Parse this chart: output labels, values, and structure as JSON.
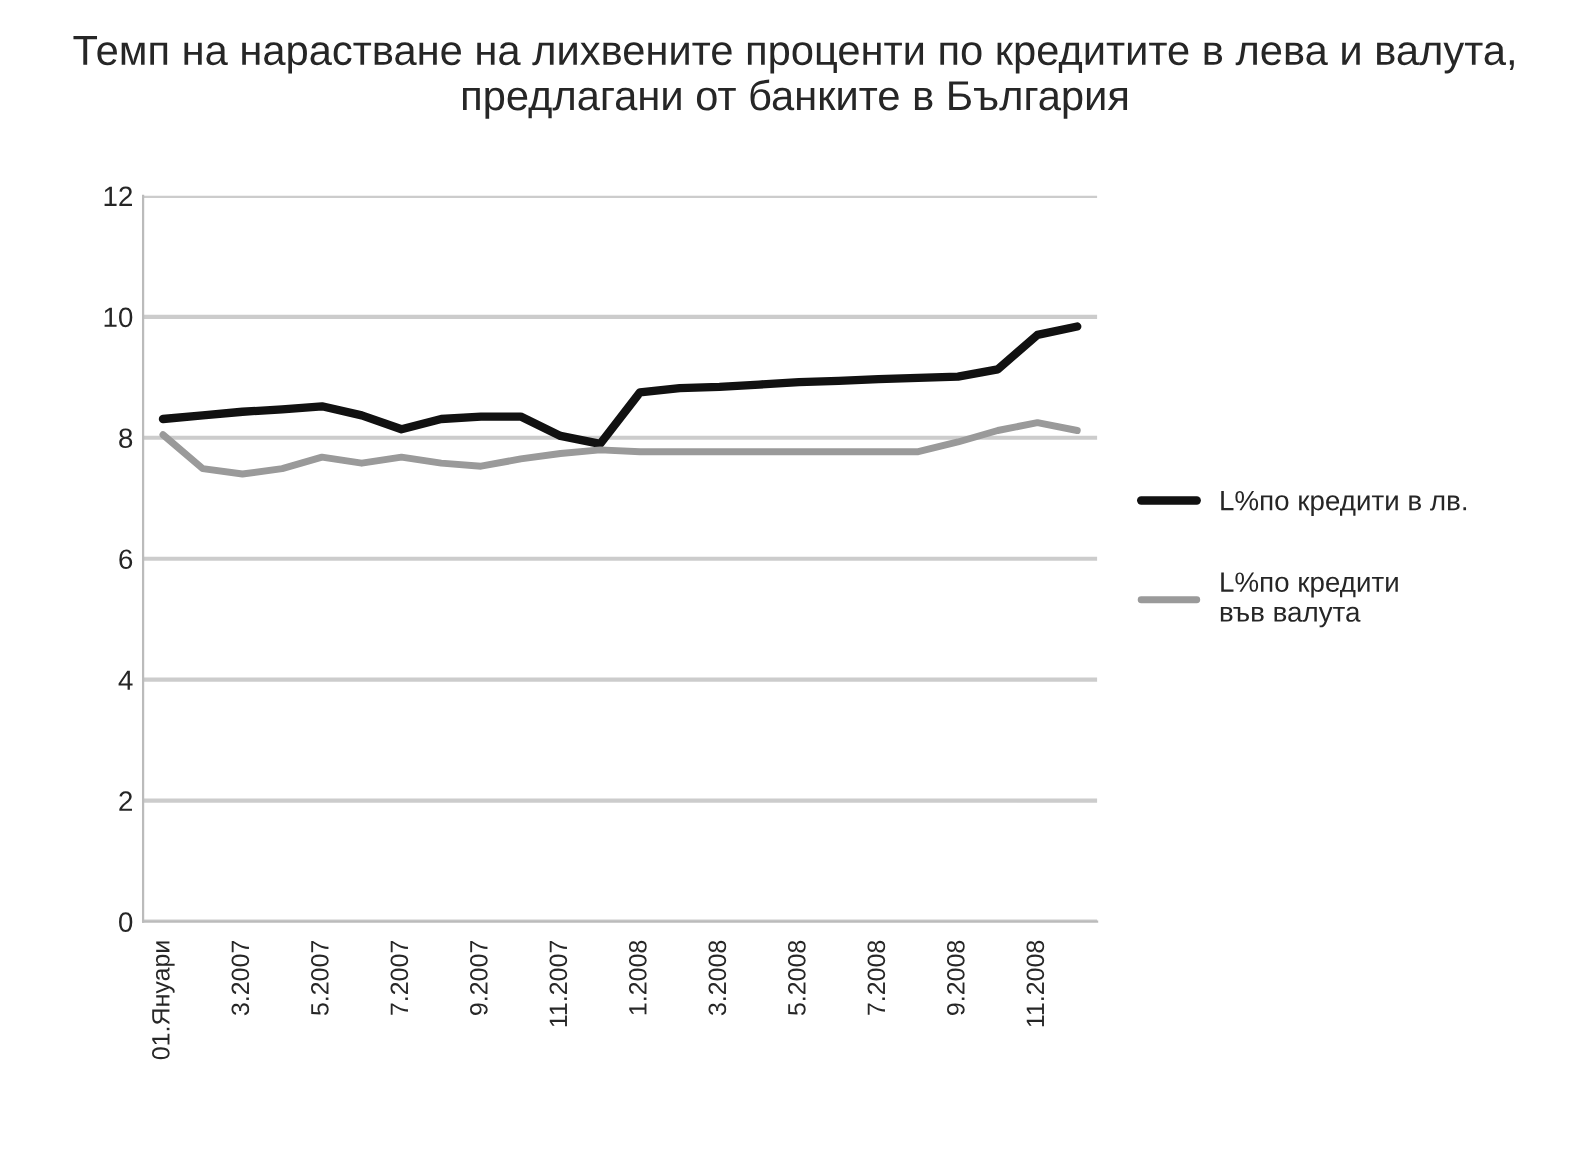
{
  "chart_data": {
    "type": "line",
    "title": "Темп на нарастване на лихвените проценти по кредитите в лева и валута, предлагани от банките в България",
    "categories": [
      "01.Януари",
      null,
      "3.2007",
      null,
      "5.2007",
      null,
      "7.2007",
      null,
      "9.2007",
      null,
      "11.2007",
      null,
      "1.2008",
      null,
      "3.2008",
      null,
      "5.2008",
      null,
      "7.2008",
      null,
      "9.2008",
      null,
      "11.2008",
      null
    ],
    "series": [
      {
        "name": "L%по кредити в лв.",
        "color": "#111111",
        "values": [
          8.31,
          8.37,
          8.43,
          8.47,
          8.52,
          8.37,
          8.14,
          8.31,
          8.35,
          8.35,
          8.03,
          7.9,
          8.75,
          8.82,
          8.84,
          8.88,
          8.92,
          8.94,
          8.97,
          8.99,
          9.01,
          9.13,
          9.7,
          9.84
        ]
      },
      {
        "name": "L%по кредити\nвъв валута",
        "color": "#9a9a9a",
        "values": [
          8.05,
          7.49,
          7.4,
          7.49,
          7.68,
          7.58,
          7.68,
          7.58,
          7.53,
          7.65,
          7.74,
          7.8,
          7.77,
          7.77,
          7.77,
          7.77,
          7.77,
          7.77,
          7.77,
          7.77,
          7.93,
          8.12,
          8.25,
          8.12
        ]
      }
    ],
    "ylim": [
      0,
      12
    ],
    "yticks": [
      0,
      2,
      4,
      6,
      8,
      10,
      12
    ],
    "grid": "y",
    "legend": "right",
    "marker": "none",
    "line_style": "solid"
  }
}
